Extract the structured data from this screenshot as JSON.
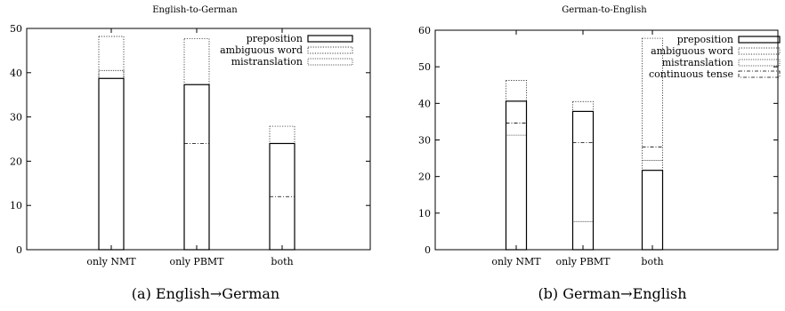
{
  "chart_data": [
    {
      "type": "bar",
      "title": "English-to-German",
      "caption": "(a) English→German",
      "categories": [
        "only NMT",
        "only PBMT",
        "both"
      ],
      "ylim": [
        0,
        50
      ],
      "yticks": [
        0,
        10,
        20,
        30,
        40,
        50
      ],
      "stacked": true,
      "legend_position": "top-right",
      "grid": false,
      "series": [
        {
          "name": "preposition",
          "style": "solid",
          "values": [
            38.7,
            37.3,
            24.0
          ]
        },
        {
          "name": "ambiguous word",
          "style": "dotted",
          "values": [
            0,
            0,
            0
          ]
        },
        {
          "name": "mistranslation",
          "style": "finedot",
          "values": [
            1.8,
            0,
            0
          ]
        }
      ],
      "stack_tops": [
        40.5,
        37.3,
        24.0
      ],
      "extra_lines": [
        [
          48.2,
          0
        ],
        [
          47.7,
          24.0
        ],
        [
          27.9,
          12.0
        ]
      ]
    },
    {
      "type": "bar",
      "title": "German-to-English",
      "caption": "(b) German→English",
      "categories": [
        "only NMT",
        "only PBMT",
        "both"
      ],
      "ylim": [
        0,
        60
      ],
      "yticks": [
        0,
        10,
        20,
        30,
        40,
        50,
        60
      ],
      "stacked": true,
      "legend_position": "top-right",
      "grid": false,
      "series": [
        {
          "name": "preposition",
          "style": "solid",
          "values": [
            40.6,
            37.8,
            21.7
          ]
        },
        {
          "name": "ambiguous word",
          "style": "dotted",
          "values": [
            0,
            0,
            0
          ]
        },
        {
          "name": "mistranslation",
          "style": "finedot",
          "values": [
            0,
            0,
            0
          ]
        },
        {
          "name": "continuous tense",
          "style": "dashdot",
          "values": [
            0,
            0,
            0
          ]
        }
      ],
      "extra_lines": [
        [
          46.3,
          34.6,
          31.3
        ],
        [
          40.5,
          29.3,
          7.7
        ],
        [
          57.8,
          28.1,
          24.4
        ]
      ]
    }
  ]
}
